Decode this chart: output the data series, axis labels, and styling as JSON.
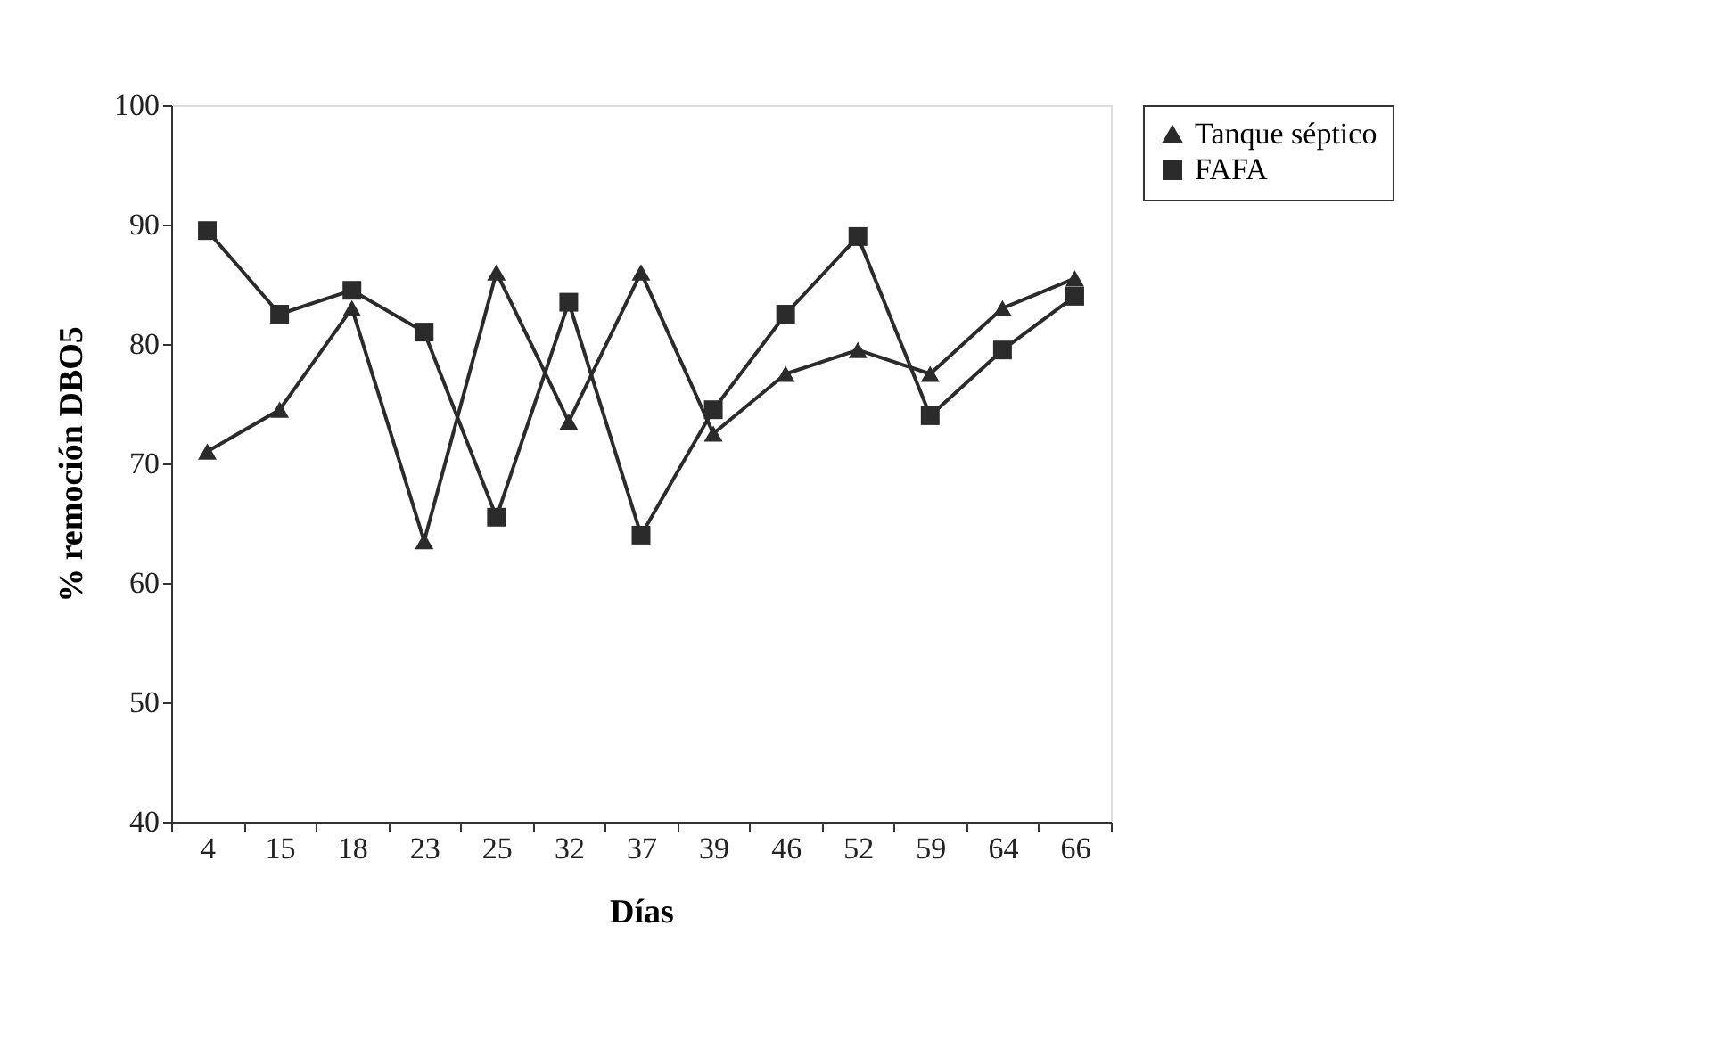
{
  "chart_data": {
    "type": "line",
    "xlabel": "Días",
    "ylabel": "% remoción DBO5",
    "categories": [
      "4",
      "15",
      "18",
      "23",
      "25",
      "32",
      "37",
      "39",
      "46",
      "52",
      "59",
      "64",
      "66"
    ],
    "series": [
      {
        "name": "Tanque séptico",
        "color": "#2b2b2b",
        "marker": "triangle",
        "values": [
          71,
          74.5,
          83,
          63.5,
          86,
          73.5,
          86,
          72.5,
          77.5,
          79.5,
          77.5,
          83,
          85.5
        ]
      },
      {
        "name": "FAFA",
        "color": "#2b2b2b",
        "marker": "square",
        "values": [
          89.5,
          82.5,
          84.5,
          81,
          65.5,
          83.5,
          64,
          74.5,
          82.5,
          89,
          74,
          79.5,
          84
        ]
      }
    ],
    "ylim": [
      40,
      100
    ],
    "yticks": [
      40,
      50,
      60,
      70,
      80,
      90,
      100
    ],
    "grid": false,
    "legend": "right",
    "line_style": "solid"
  }
}
